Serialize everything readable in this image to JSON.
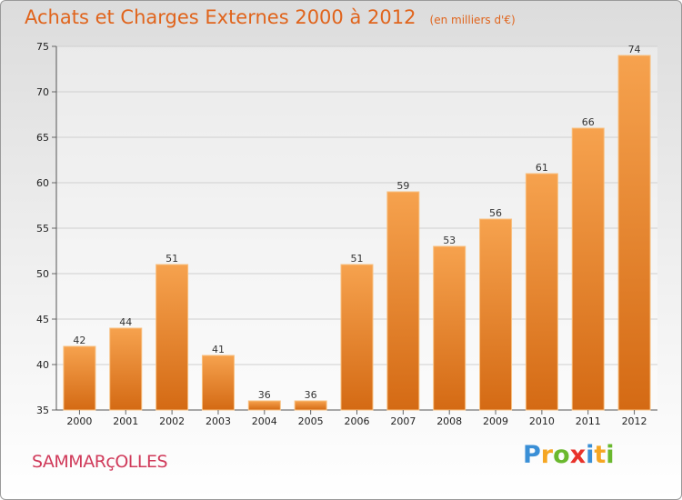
{
  "title": "Achats et Charges Externes 2000 à 2012",
  "subtitle": "(en milliers d'€)",
  "commune": "SAMMARçOLLES",
  "brand": {
    "letters": [
      {
        "ch": "P",
        "color": "#3a8fd6"
      },
      {
        "ch": "r",
        "color": "#f5a623"
      },
      {
        "ch": "o",
        "color": "#6ab82e"
      },
      {
        "ch": "x",
        "color": "#e8322a"
      },
      {
        "ch": "i",
        "color": "#3a8fd6"
      },
      {
        "ch": "t",
        "color": "#f5a623"
      },
      {
        "ch": "i",
        "color": "#6ab82e"
      }
    ]
  },
  "colors": {
    "bar_top": "#f6a24e",
    "bar_bottom": "#d46a14",
    "title": "#e0641c",
    "commune": "#d03a5a"
  },
  "chart_data": {
    "type": "bar",
    "title": "Achats et Charges Externes 2000 à 2012",
    "subtitle": "(en milliers d'€)",
    "categories": [
      "2000",
      "2001",
      "2002",
      "2003",
      "2004",
      "2005",
      "2006",
      "2007",
      "2008",
      "2009",
      "2010",
      "2011",
      "2012"
    ],
    "values": [
      42,
      44,
      51,
      41,
      36,
      36,
      51,
      59,
      53,
      56,
      61,
      66,
      74
    ],
    "ylim": [
      35,
      75
    ],
    "yticks": [
      35,
      40,
      45,
      50,
      55,
      60,
      65,
      70,
      75
    ],
    "grid": true,
    "xlabel": "",
    "ylabel": ""
  }
}
